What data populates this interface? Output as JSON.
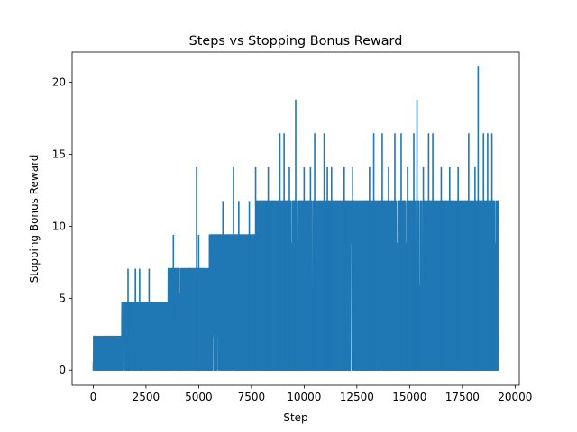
{
  "chart_data": {
    "type": "line",
    "title": "Steps vs Stopping Bonus Reward",
    "xlabel": "Step",
    "ylabel": "Stopping Bonus Reward",
    "xlim": [
      -1000,
      20200
    ],
    "ylim": [
      -1.05,
      22.1
    ],
    "xticks": [
      0,
      2500,
      5000,
      7500,
      10000,
      12500,
      15000,
      17500,
      20000
    ],
    "xtick_labels": [
      "0",
      "2500",
      "5000",
      "7500",
      "10000",
      "12500",
      "15000",
      "17500",
      "20000"
    ],
    "yticks": [
      0,
      5,
      10,
      15,
      20
    ],
    "ytick_labels": [
      "0",
      "5",
      "10",
      "15",
      "20"
    ],
    "grid": false,
    "series": [
      {
        "color": "#1f77b4",
        "x_range": [
          0,
          19200
        ],
        "baseline": 0,
        "upper_envelope": [
          [
            0,
            2.35
          ],
          [
            600,
            2.35
          ],
          [
            1200,
            2.35
          ],
          [
            1300,
            4.7
          ],
          [
            1600,
            4.7
          ],
          [
            2000,
            4.7
          ],
          [
            2600,
            4.7
          ],
          [
            3200,
            4.7
          ],
          [
            3500,
            4.7
          ],
          [
            3550,
            7.05
          ],
          [
            4500,
            7.05
          ],
          [
            5000,
            7.05
          ],
          [
            5400,
            7.05
          ],
          [
            5500,
            9.4
          ],
          [
            6000,
            9.4
          ],
          [
            6600,
            9.4
          ],
          [
            7600,
            9.4
          ],
          [
            7700,
            11.75
          ],
          [
            9000,
            11.75
          ],
          [
            12000,
            11.75
          ],
          [
            15000,
            11.75
          ],
          [
            19200,
            11.75
          ]
        ],
        "spikes": [
          [
            1650,
            7.05
          ],
          [
            2000,
            7.05
          ],
          [
            2200,
            7.05
          ],
          [
            2650,
            7.05
          ],
          [
            3800,
            9.4
          ],
          [
            4900,
            14.1
          ],
          [
            5000,
            9.4
          ],
          [
            6150,
            11.75
          ],
          [
            6650,
            14.1
          ],
          [
            6900,
            11.75
          ],
          [
            7400,
            11.75
          ],
          [
            7700,
            14.1
          ],
          [
            8300,
            14.1
          ],
          [
            8850,
            16.45
          ],
          [
            9050,
            16.45
          ],
          [
            9300,
            14.1
          ],
          [
            9600,
            18.8
          ],
          [
            10000,
            14.1
          ],
          [
            10300,
            14.1
          ],
          [
            10500,
            16.45
          ],
          [
            10950,
            16.45
          ],
          [
            11100,
            14.1
          ],
          [
            11300,
            14.1
          ],
          [
            11900,
            14.1
          ],
          [
            12300,
            14.1
          ],
          [
            13100,
            14.1
          ],
          [
            13300,
            16.45
          ],
          [
            13700,
            16.45
          ],
          [
            14000,
            14.1
          ],
          [
            14300,
            16.45
          ],
          [
            14600,
            16.45
          ],
          [
            14900,
            14.1
          ],
          [
            15200,
            16.45
          ],
          [
            15350,
            18.8
          ],
          [
            15650,
            14.1
          ],
          [
            15900,
            16.45
          ],
          [
            16100,
            16.45
          ],
          [
            16500,
            14.1
          ],
          [
            16900,
            14.1
          ],
          [
            17300,
            14.1
          ],
          [
            17800,
            16.45
          ],
          [
            18100,
            14.1
          ],
          [
            18250,
            21.15
          ],
          [
            18500,
            16.45
          ],
          [
            18700,
            16.45
          ],
          [
            18900,
            16.45
          ]
        ]
      }
    ]
  }
}
